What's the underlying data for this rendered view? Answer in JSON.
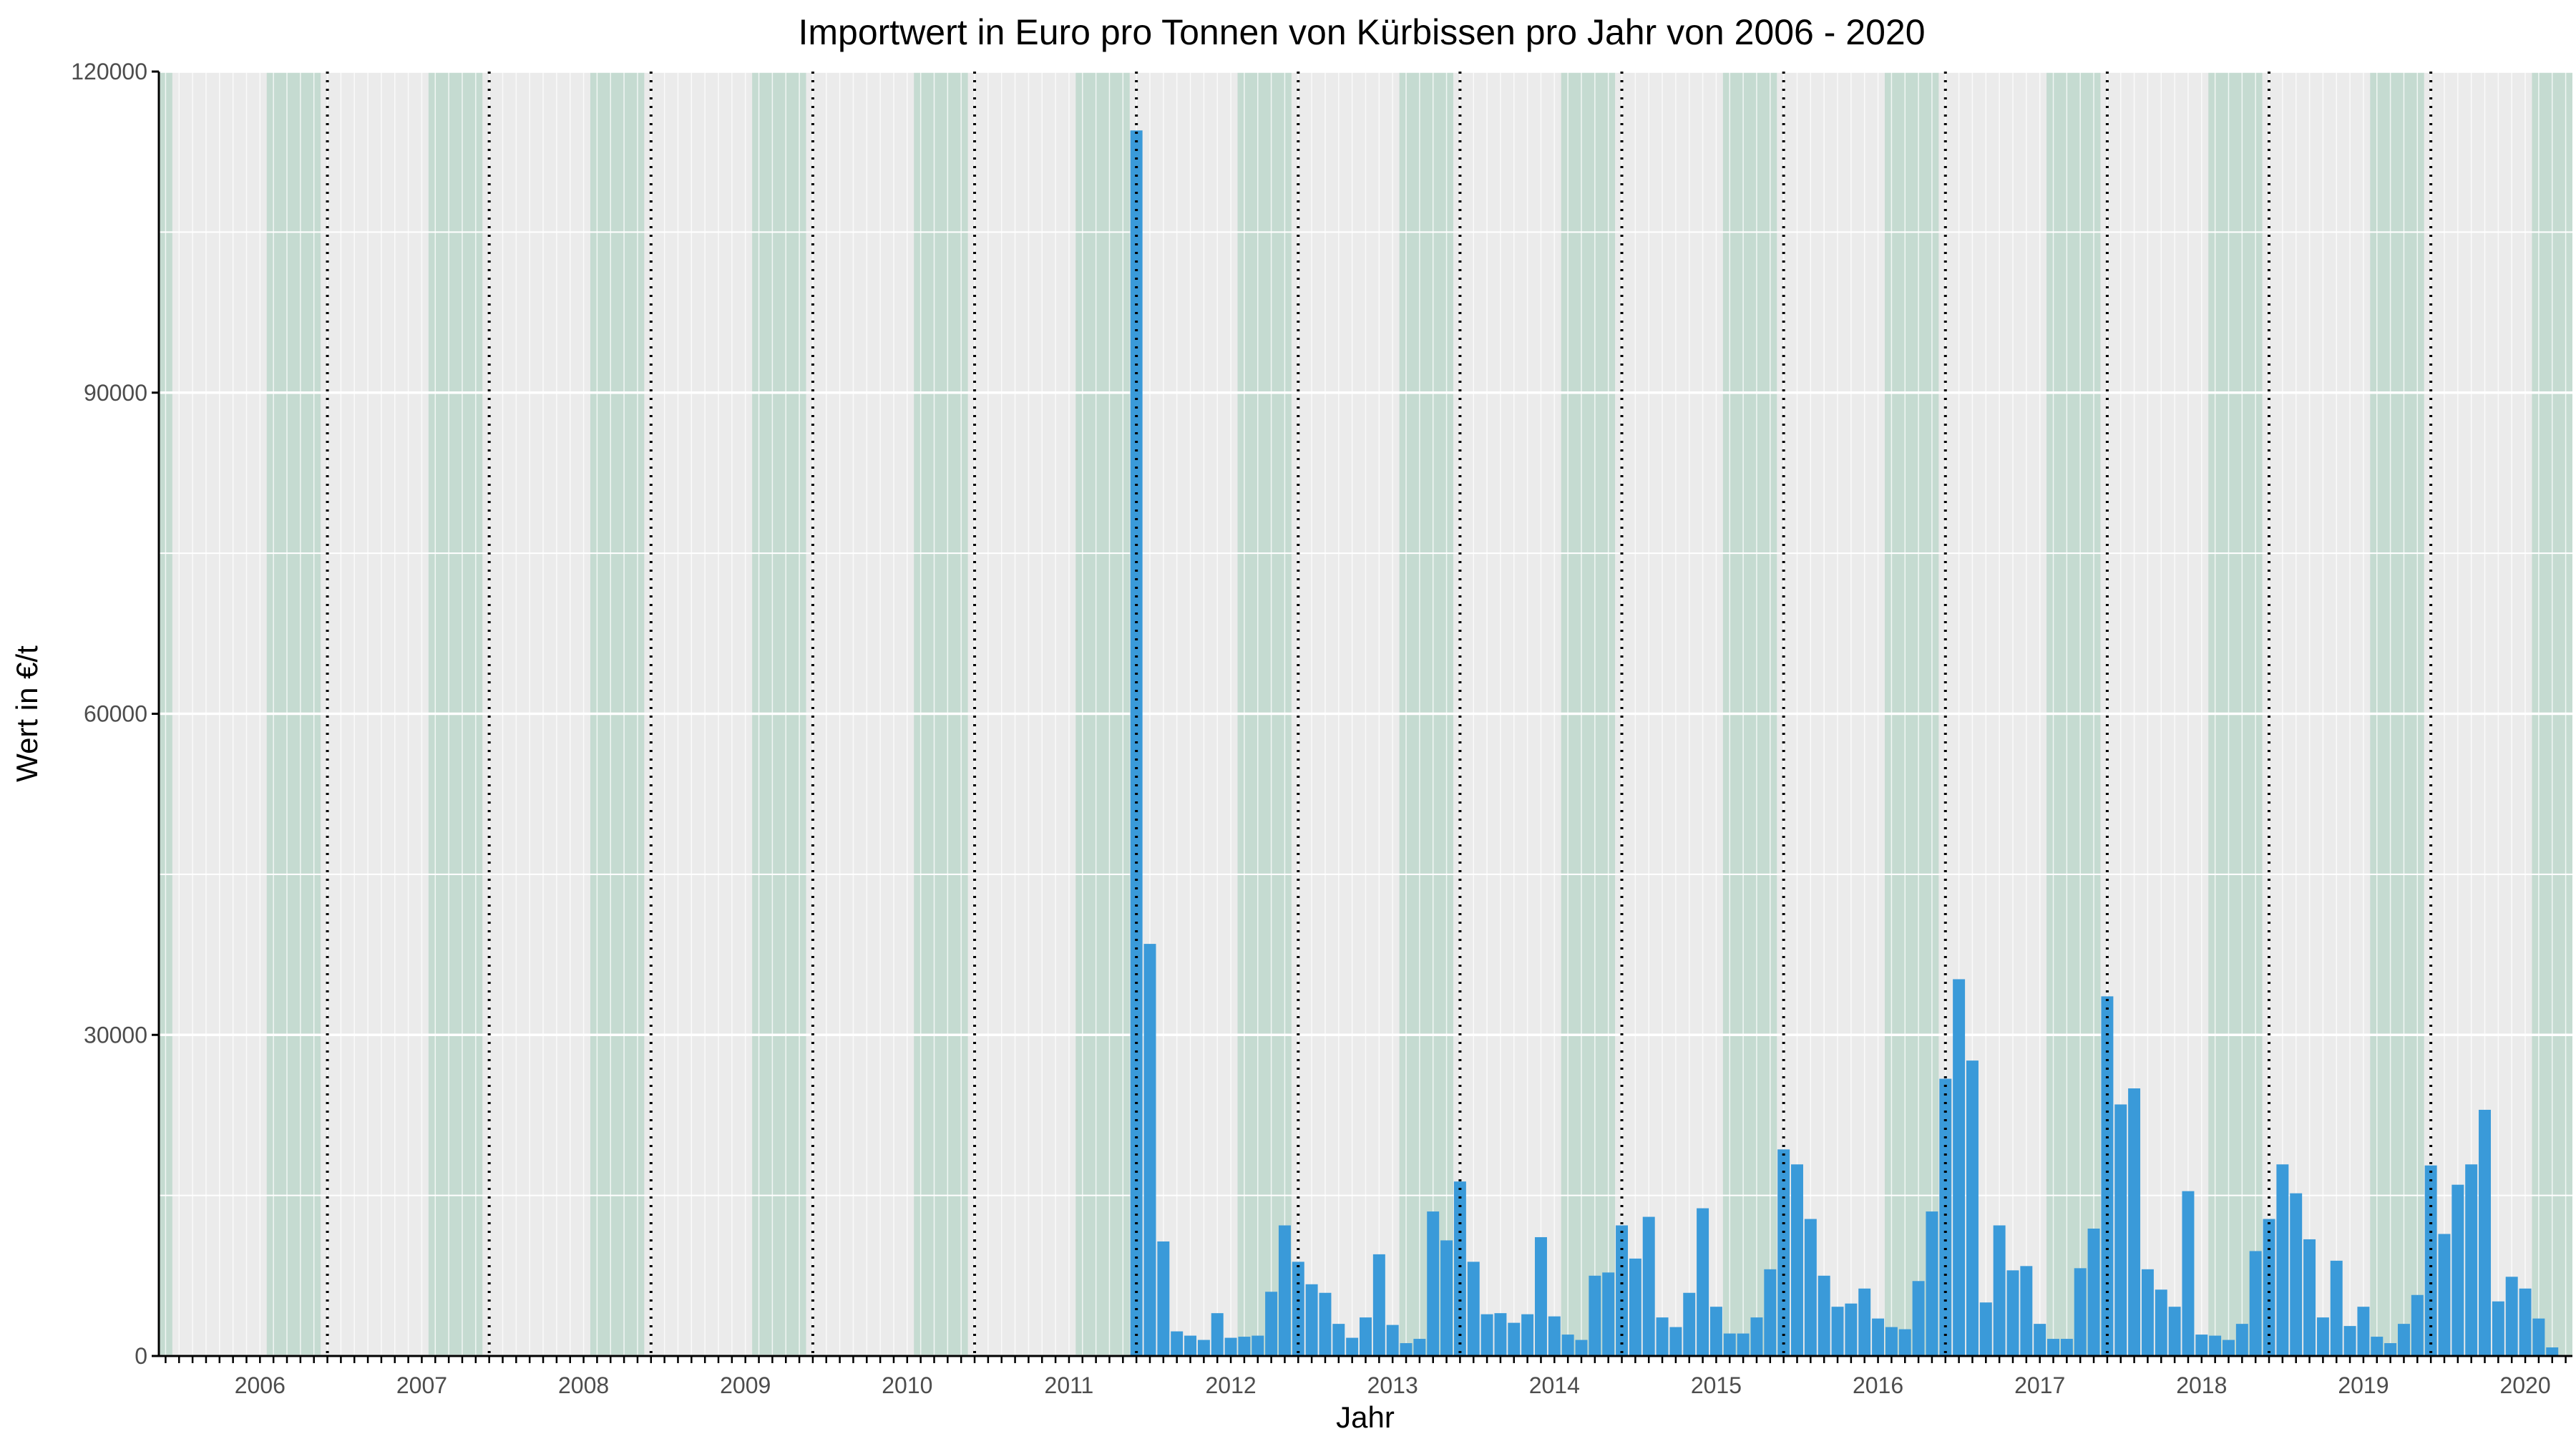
{
  "colors": {
    "bar": "#3a9ad9",
    "panel_bg": "#ebebeb",
    "grid": "#ffffff",
    "season_band": "#c5dbd1",
    "season_line": "#000000",
    "axis": "#000000"
  },
  "chart_data": {
    "type": "bar",
    "title": "Importwert in Euro pro Tonnen von Kürbissen pro Jahr von 2006 - 2020",
    "xlabel": "Jahr",
    "ylabel": "Wert in €/t",
    "ylim": [
      0,
      120000
    ],
    "y_ticks": [
      0,
      30000,
      60000,
      90000,
      120000
    ],
    "y_tick_labels": [
      "0",
      "30000",
      "60000",
      "90000",
      "120000"
    ],
    "x_start": "2005-07",
    "x_end": "2020-05",
    "x_tick_labels": [
      "2006",
      "2007",
      "2008",
      "2009",
      "2010",
      "2011",
      "2012",
      "2013",
      "2014",
      "2015",
      "2016",
      "2017",
      "2018",
      "2019",
      "2020"
    ],
    "grid": true,
    "season_bands": [
      {
        "from": "2005-07",
        "to": "2005-07"
      },
      {
        "from": "2006-03",
        "to": "2006-06"
      },
      {
        "from": "2007-03",
        "to": "2007-06"
      },
      {
        "from": "2008-03",
        "to": "2008-06"
      },
      {
        "from": "2009-03",
        "to": "2009-06"
      },
      {
        "from": "2010-03",
        "to": "2010-06"
      },
      {
        "from": "2011-03",
        "to": "2011-06"
      },
      {
        "from": "2012-03",
        "to": "2012-06"
      },
      {
        "from": "2013-03",
        "to": "2013-06"
      },
      {
        "from": "2014-03",
        "to": "2014-06"
      },
      {
        "from": "2015-03",
        "to": "2015-06"
      },
      {
        "from": "2016-03",
        "to": "2016-06"
      },
      {
        "from": "2017-03",
        "to": "2017-06"
      },
      {
        "from": "2018-03",
        "to": "2018-06"
      },
      {
        "from": "2019-03",
        "to": "2019-06"
      },
      {
        "from": "2020-03",
        "to": "2020-05"
      }
    ],
    "season_lines": [
      "2006-07",
      "2007-07",
      "2008-07",
      "2009-07",
      "2010-07",
      "2011-07",
      "2012-07",
      "2013-07",
      "2014-07",
      "2015-07",
      "2016-07",
      "2017-07",
      "2018-07",
      "2019-07"
    ],
    "series": [
      {
        "x": [
          "2011-07",
          "2011-08",
          "2011-09",
          "2011-10",
          "2011-11",
          "2011-12",
          "2012-01",
          "2012-02",
          "2012-03",
          "2012-04",
          "2012-05",
          "2012-06",
          "2012-07",
          "2012-08",
          "2012-09",
          "2012-10",
          "2012-11",
          "2012-12",
          "2013-01",
          "2013-02",
          "2013-03",
          "2013-04",
          "2013-05",
          "2013-06",
          "2013-07",
          "2013-08",
          "2013-09",
          "2013-10",
          "2013-11",
          "2013-12",
          "2014-01",
          "2014-02",
          "2014-03",
          "2014-04",
          "2014-05",
          "2014-06",
          "2014-07",
          "2014-08",
          "2014-09",
          "2014-10",
          "2014-11",
          "2014-12",
          "2015-01",
          "2015-02",
          "2015-03",
          "2015-04",
          "2015-05",
          "2015-06",
          "2015-07",
          "2015-08",
          "2015-09",
          "2015-10",
          "2015-11",
          "2015-12",
          "2016-01",
          "2016-02",
          "2016-03",
          "2016-04",
          "2016-05",
          "2016-06",
          "2016-07",
          "2016-08",
          "2016-09",
          "2016-10",
          "2016-11",
          "2016-12",
          "2017-01",
          "2017-02",
          "2017-03",
          "2017-04",
          "2017-05",
          "2017-06",
          "2017-07",
          "2017-08",
          "2017-09",
          "2017-10",
          "2017-11",
          "2017-12",
          "2018-01",
          "2018-02",
          "2018-03",
          "2018-04",
          "2018-05",
          "2018-06",
          "2018-07",
          "2018-08",
          "2018-09",
          "2018-10",
          "2018-11",
          "2018-12",
          "2019-01",
          "2019-02",
          "2019-03",
          "2019-04",
          "2019-05",
          "2019-06",
          "2019-07",
          "2019-08",
          "2019-09",
          "2019-10",
          "2019-11",
          "2019-12",
          "2020-01",
          "2020-02",
          "2020-03",
          "2020-04"
        ],
        "values": [
          114500,
          38500,
          10700,
          2300,
          1900,
          1500,
          4000,
          1700,
          1800,
          1900,
          6000,
          12200,
          8800,
          6700,
          5900,
          3000,
          1700,
          3600,
          9500,
          2900,
          1200,
          1600,
          13500,
          10800,
          16300,
          8800,
          3900,
          4000,
          3100,
          3900,
          11100,
          3700,
          2000,
          1500,
          7500,
          7800,
          12200,
          9100,
          13000,
          3600,
          2700,
          5900,
          13800,
          4600,
          2100,
          2100,
          3600,
          8100,
          19300,
          17900,
          12800,
          7500,
          4600,
          4900,
          6300,
          3500,
          2700,
          2500,
          7000,
          13500,
          25900,
          35200,
          27600,
          5000,
          12200,
          8000,
          8400,
          3000,
          1600,
          1600,
          8200,
          11900,
          33600,
          23500,
          25000,
          8100,
          6200,
          4600,
          15400,
          2000,
          1900,
          1500,
          3000,
          9800,
          12800,
          17900,
          15200,
          10900,
          3600,
          8900,
          2800,
          4600,
          1800,
          1200,
          3000,
          5700,
          17800,
          11400,
          16000,
          17900,
          23000,
          5100,
          7400,
          6300,
          3500,
          800
        ]
      }
    ]
  }
}
